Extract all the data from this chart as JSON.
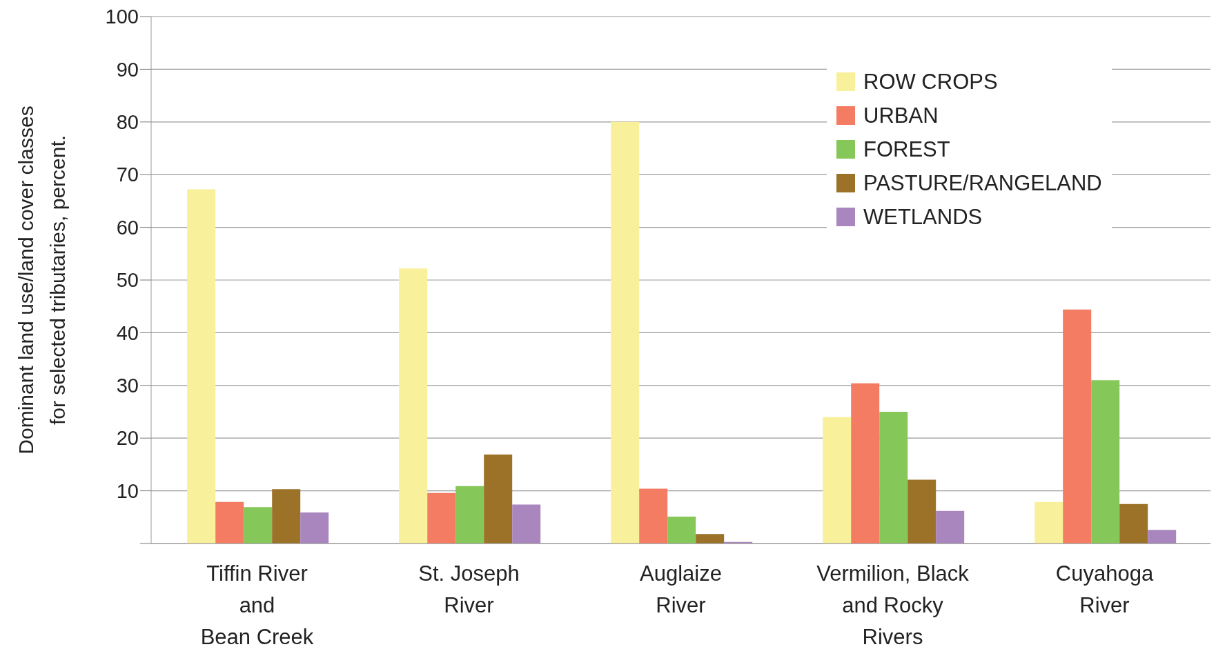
{
  "chart_data": {
    "type": "bar",
    "ylabel": "Dominant land use/land cover classes\nfor selected tributaries, percent.",
    "categories": [
      "Tiffin River\nand\nBean Creek",
      "St. Joseph\nRiver",
      "Auglaize\nRiver",
      "Vermilion, Black\nand Rocky\nRivers",
      "Cuyahoga\nRiver"
    ],
    "series": [
      {
        "name": "ROW CROPS",
        "color": "#f8f09a",
        "values": [
          67.2,
          52.2,
          80,
          24,
          7.9
        ]
      },
      {
        "name": "URBAN",
        "color": "#f47c62",
        "values": [
          7.9,
          9.6,
          10.4,
          30.4,
          44.4
        ]
      },
      {
        "name": "FOREST",
        "color": "#86c75a",
        "values": [
          6.9,
          10.9,
          5.1,
          25,
          31
        ]
      },
      {
        "name": "PASTURE/RANGELAND",
        "color": "#9c7229",
        "values": [
          10.3,
          16.9,
          1.8,
          12.1,
          7.5
        ]
      },
      {
        "name": "WETLANDS",
        "color": "#a986bd",
        "values": [
          5.9,
          7.4,
          0.3,
          6.2,
          2.6
        ]
      }
    ],
    "ylim": [
      0,
      100
    ],
    "yticks": [
      {
        "value": 0,
        "label": null
      },
      10,
      20,
      30,
      40,
      50,
      60,
      70,
      80,
      90,
      100
    ],
    "grid": "y",
    "legend": "top right"
  }
}
